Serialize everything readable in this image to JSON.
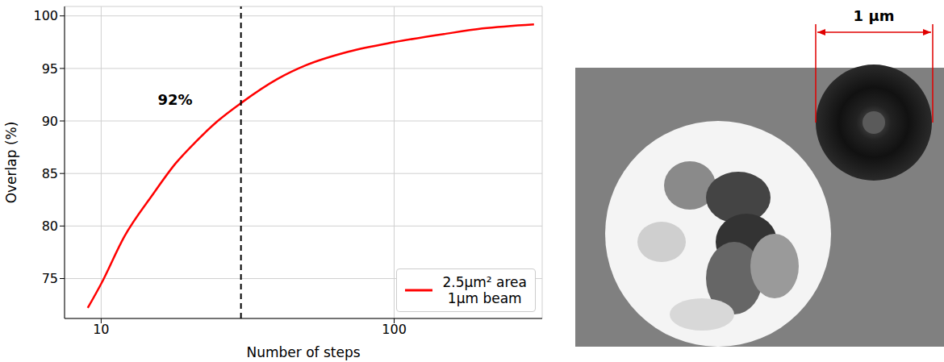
{
  "chart_data": {
    "type": "line",
    "xlabel": "Number of steps",
    "ylabel": "Overlap (%)",
    "log": "x",
    "grid": true,
    "legend": "lower right",
    "x": [
      9,
      10,
      12,
      15,
      18,
      21,
      25,
      30,
      40,
      50,
      70,
      100,
      150,
      200,
      300
    ],
    "series": [
      {
        "name": "2.5μm² area\n1μm beam",
        "color": "#ff0000",
        "values": [
          72.2,
          74.5,
          79,
          83,
          86,
          88,
          90,
          91.7,
          94,
          95.3,
          96.6,
          97.5,
          98.3,
          98.8,
          99.2
        ]
      }
    ],
    "xlim": [
      7.5,
      320
    ],
    "xticks": [
      10,
      100
    ],
    "ylim": [
      71.2,
      100.9
    ],
    "yticks": [
      75,
      80,
      85,
      90,
      95,
      100
    ],
    "reference_line": {
      "x": 30,
      "value": 92,
      "label": "92%"
    }
  },
  "image": {
    "scale_bar_label": "1 µm"
  }
}
